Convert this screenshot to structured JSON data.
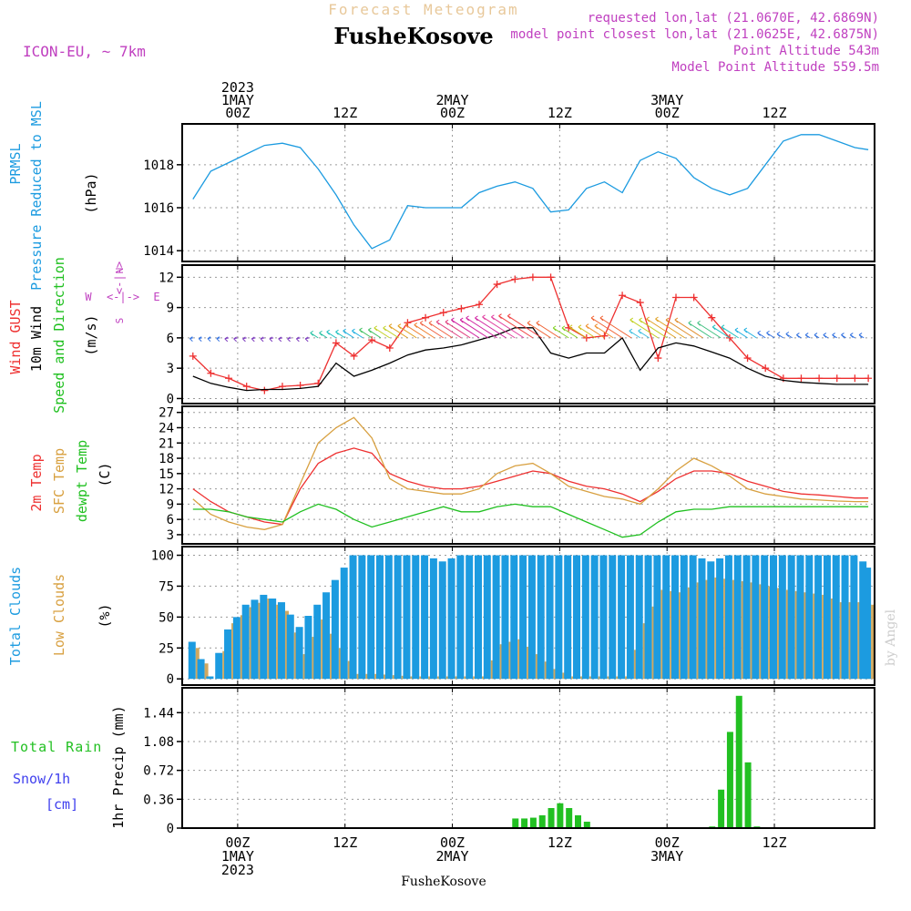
{
  "header": {
    "title": "Forecast Meteogram",
    "location": "FusheKosove",
    "model": "ICON-EU, ~ 7km",
    "requested": "requested lon,lat (21.0670E, 42.6869N)",
    "closest": "model point closest lon,lat (21.0625E, 42.6875N)",
    "point_altitude": "Point Altitude 543m",
    "model_altitude": "Model Point Altitude 559.5m",
    "footer_location": "FusheKosove",
    "watermark": "by Angel"
  },
  "colors": {
    "pressure": "#1c9be0",
    "gust": "#ee3030",
    "wind": "#000000",
    "temp2m": "#ee3030",
    "sfc": "#d8a040",
    "dewpt": "#20c020",
    "total_clouds": "#1c9be0",
    "low_clouds": "#d0a860",
    "rain": "#22c022",
    "snow": "#4040ee",
    "magenta": "#c040c0",
    "title": "#e8c89a",
    "grid": "#9a9a9a"
  },
  "time_axis": {
    "top_labels": [
      {
        "hour": 0,
        "lines": [
          "2023",
          "1MAY",
          "00Z"
        ]
      },
      {
        "hour": 12,
        "lines": [
          "12Z"
        ]
      },
      {
        "hour": 24,
        "lines": [
          "2MAY",
          "00Z"
        ]
      },
      {
        "hour": 36,
        "lines": [
          "12Z"
        ]
      },
      {
        "hour": 48,
        "lines": [
          "3MAY",
          "00Z"
        ]
      },
      {
        "hour": 60,
        "lines": [
          "12Z"
        ]
      }
    ],
    "bottom_labels": [
      {
        "hour": 0,
        "lines": [
          "00Z",
          "1MAY",
          "2023"
        ]
      },
      {
        "hour": 12,
        "lines": [
          "12Z"
        ]
      },
      {
        "hour": 24,
        "lines": [
          "00Z",
          "2MAY"
        ]
      },
      {
        "hour": 36,
        "lines": [
          "12Z"
        ]
      },
      {
        "hour": 48,
        "lines": [
          "00Z",
          "3MAY"
        ]
      },
      {
        "hour": 60,
        "lines": [
          "12Z"
        ]
      }
    ]
  },
  "panels": {
    "pressure": {
      "ylabels": [
        "PRMSL",
        "Pressure Reduced to MSL",
        "(hPa)"
      ],
      "yticks": [
        "1014",
        "1016",
        "1018"
      ]
    },
    "wind": {
      "ylabels": [
        "Wind GUST",
        "10m Wind",
        "Speed and Direction",
        "(m/s)"
      ],
      "yticks": [
        "0",
        "3",
        "6",
        "9",
        "12"
      ],
      "compass": {
        "w": "W",
        "e": "E",
        "n": "N",
        "s": "S",
        "arrow": "<-|->"
      }
    },
    "temperature": {
      "ylabels": [
        "2m Temp",
        "SFC Temp",
        "dewpt Temp",
        "(C)"
      ],
      "yticks": [
        "3",
        "6",
        "9",
        "12",
        "15",
        "18",
        "21",
        "24",
        "27"
      ]
    },
    "clouds": {
      "ylabels": [
        "Total Clouds",
        "Low Clouds",
        "(%)"
      ],
      "yticks": [
        "0",
        "25",
        "50",
        "75",
        "100"
      ]
    },
    "precip": {
      "ylabels": [
        "1hr Precip (mm)"
      ],
      "side_labels": [
        "Total Rain",
        "Snow/1h",
        "[cm]"
      ],
      "yticks": [
        "0",
        "0.36",
        "0.72",
        "1.08",
        "1.44"
      ]
    }
  },
  "chart_data": [
    {
      "type": "line",
      "title": "PRMSL Pressure Reduced to MSL",
      "ylabel": "(hPa)",
      "ylim": [
        1013.5,
        1019.9
      ],
      "grid": true,
      "x": [
        -5,
        -3,
        -1,
        1,
        3,
        5,
        7,
        9,
        11,
        13,
        15,
        17,
        19,
        21,
        23,
        25,
        27,
        29,
        31,
        33,
        35,
        37,
        39,
        41,
        43,
        45,
        47,
        49,
        51,
        53,
        55,
        57,
        59,
        61,
        63,
        65,
        67,
        69,
        70.5
      ],
      "series": [
        {
          "name": "PRMSL",
          "values": [
            1016.4,
            1017.7,
            1018.1,
            1018.5,
            1018.9,
            1019.0,
            1018.8,
            1017.8,
            1016.6,
            1015.2,
            1014.1,
            1014.5,
            1016.1,
            1016.0,
            1016.0,
            1016.0,
            1016.7,
            1017.0,
            1017.2,
            1016.9,
            1015.8,
            1015.9,
            1016.9,
            1017.2,
            1016.7,
            1018.2,
            1018.6,
            1018.3,
            1017.4,
            1016.9,
            1016.6,
            1016.9,
            1018.0,
            1019.1,
            1019.4,
            1019.4,
            1019.1,
            1018.8,
            1018.7
          ]
        }
      ]
    },
    {
      "type": "line",
      "title": "Wind GUST / 10m Wind",
      "ylabel": "(m/s)",
      "ylim": [
        -0.5,
        13.2
      ],
      "grid": true,
      "x": [
        -5,
        -3,
        -1,
        1,
        3,
        5,
        7,
        9,
        11,
        13,
        15,
        17,
        19,
        21,
        23,
        25,
        27,
        29,
        31,
        33,
        35,
        37,
        39,
        41,
        43,
        45,
        47,
        49,
        51,
        53,
        55,
        57,
        59,
        61,
        63,
        65,
        67,
        69,
        70.5
      ],
      "series": [
        {
          "name": "Wind GUST",
          "values": [
            4.2,
            2.5,
            2.0,
            1.2,
            0.8,
            1.2,
            1.3,
            1.5,
            5.5,
            4.2,
            5.8,
            5.0,
            7.5,
            8.0,
            8.5,
            8.9,
            9.3,
            11.3,
            11.8,
            12.0,
            12.0,
            7.0,
            6.0,
            6.2,
            10.2,
            9.5,
            4.0,
            10.0,
            10.0,
            8.0,
            6.0,
            4.0,
            3.0,
            2.0,
            2.0,
            2.0,
            2.0,
            2.0,
            2.0
          ]
        },
        {
          "name": "10m Wind",
          "values": [
            2.2,
            1.5,
            1.1,
            0.8,
            0.9,
            0.9,
            1.0,
            1.2,
            3.5,
            2.2,
            2.8,
            3.5,
            4.3,
            4.8,
            5.0,
            5.3,
            5.8,
            6.3,
            7.0,
            7.0,
            4.5,
            4.0,
            4.5,
            4.5,
            6.0,
            2.8,
            5.0,
            5.5,
            5.2,
            4.6,
            4.0,
            3.0,
            2.2,
            1.8,
            1.6,
            1.5,
            1.4,
            1.4,
            1.4
          ]
        }
      ]
    },
    {
      "type": "line",
      "title": "2m Temp / SFC Temp / dewpt Temp",
      "ylabel": "(C)",
      "ylim": [
        1.2,
        28.2
      ],
      "grid": true,
      "x": [
        -5,
        -3,
        -1,
        1,
        3,
        5,
        7,
        9,
        11,
        13,
        15,
        17,
        19,
        21,
        23,
        25,
        27,
        29,
        31,
        33,
        35,
        37,
        39,
        41,
        43,
        45,
        47,
        49,
        51,
        53,
        55,
        57,
        59,
        61,
        63,
        65,
        67,
        69,
        70.5
      ],
      "series": [
        {
          "name": "2m Temp",
          "values": [
            12.0,
            9.5,
            7.5,
            6.5,
            5.5,
            5.0,
            12.0,
            17.0,
            19.0,
            20.0,
            19.0,
            15.0,
            13.5,
            12.5,
            12.0,
            12.0,
            12.5,
            13.5,
            14.5,
            15.5,
            15.0,
            13.5,
            12.5,
            12.0,
            11.0,
            9.5,
            11.5,
            14.0,
            15.5,
            15.5,
            15.0,
            13.5,
            12.5,
            11.5,
            11.0,
            10.8,
            10.5,
            10.2,
            10.2
          ]
        },
        {
          "name": "SFC Temp",
          "values": [
            10.0,
            7.0,
            5.5,
            4.5,
            4.0,
            5.0,
            13.0,
            21.0,
            24.0,
            26.0,
            22.0,
            14.0,
            12.0,
            11.5,
            11.0,
            11.0,
            12.0,
            15.0,
            16.5,
            17.0,
            15.0,
            12.5,
            11.5,
            10.5,
            10.0,
            9.0,
            12.0,
            15.5,
            18.0,
            16.5,
            14.5,
            12.0,
            11.0,
            10.5,
            10.0,
            9.8,
            9.6,
            9.5,
            9.5
          ]
        },
        {
          "name": "dewpt Temp",
          "values": [
            8.0,
            8.0,
            7.5,
            6.5,
            6.0,
            5.5,
            7.5,
            9.0,
            8.0,
            6.0,
            4.5,
            5.5,
            6.5,
            7.5,
            8.5,
            7.5,
            7.5,
            8.5,
            9.0,
            8.5,
            8.5,
            7.0,
            5.5,
            4.0,
            2.5,
            3.0,
            5.5,
            7.5,
            8.0,
            8.0,
            8.5,
            8.5,
            8.5,
            8.5,
            8.5,
            8.5,
            8.5,
            8.5,
            8.5
          ]
        }
      ]
    },
    {
      "type": "bar",
      "title": "Total Clouds / Low Clouds",
      "ylabel": "(%)",
      "ylim": [
        -5,
        107
      ],
      "grid": true,
      "x": [
        -5,
        -3,
        -1,
        1,
        3,
        5,
        7,
        9,
        11,
        13,
        15,
        17,
        19,
        21,
        23,
        25,
        27,
        29,
        31,
        33,
        35,
        37,
        39,
        41,
        43,
        45,
        47,
        49,
        51,
        53,
        55,
        57,
        59,
        61,
        63,
        65,
        67,
        69,
        70.5
      ],
      "series": [
        {
          "name": "Total Clouds",
          "values": [
            30,
            2,
            40,
            60,
            68,
            62,
            42,
            60,
            80,
            100,
            100,
            100,
            100,
            100,
            95,
            100,
            100,
            100,
            100,
            100,
            100,
            100,
            100,
            100,
            100,
            100,
            100,
            100,
            100,
            95,
            100,
            100,
            100,
            100,
            100,
            100,
            100,
            100,
            90
          ]
        },
        {
          "name": "Low Clouds",
          "values": [
            25,
            0,
            45,
            58,
            65,
            55,
            20,
            48,
            25,
            4,
            4,
            3,
            2,
            2,
            2,
            2,
            2,
            28,
            32,
            20,
            8,
            2,
            2,
            2,
            2,
            45,
            72,
            70,
            78,
            82,
            80,
            78,
            75,
            72,
            70,
            68,
            62,
            62,
            60
          ]
        }
      ]
    },
    {
      "type": "bar",
      "title": "Total Rain / Snow",
      "ylabel": "1hr Precip (mm)",
      "ylim": [
        0,
        1.75
      ],
      "grid": true,
      "x": [
        31,
        32,
        33,
        34,
        35,
        36,
        37,
        38,
        39,
        40,
        41,
        42,
        53,
        54,
        55,
        56,
        57,
        58
      ],
      "series": [
        {
          "name": "Total Rain",
          "values": [
            0.12,
            0.12,
            0.13,
            0.16,
            0.25,
            0.31,
            0.25,
            0.16,
            0.08,
            0.01,
            0.0,
            0.0,
            0.02,
            0.48,
            1.2,
            1.65,
            0.82,
            0.02
          ]
        }
      ]
    }
  ]
}
